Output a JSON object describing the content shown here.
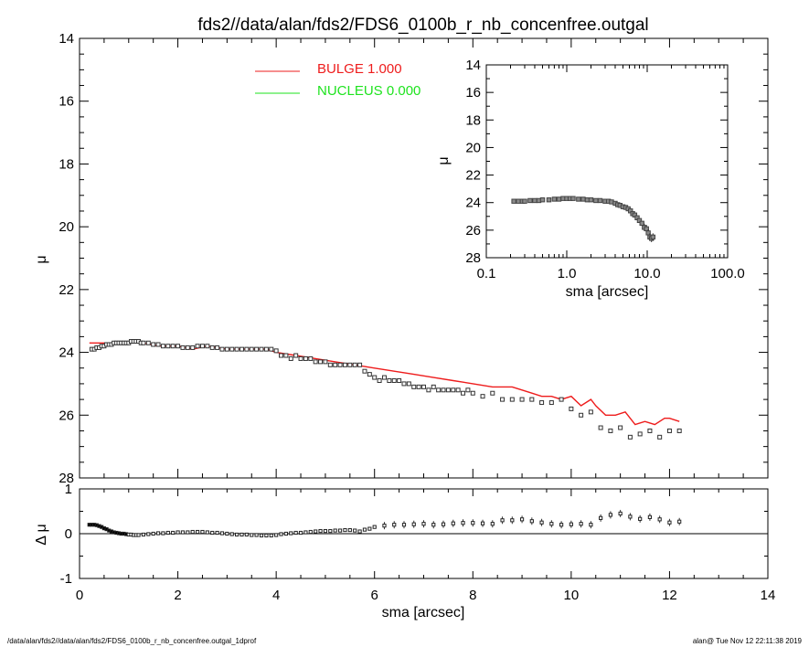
{
  "header": {
    "title": "fds2//data/alan/fds2/FDS6_0100b_r_nb_concenfree.outgal"
  },
  "footer": {
    "left": "/data/alan/fds2//data/alan/fds2/FDS6_0100b_r_nb_concenfree.outgal_1dprof",
    "right": "alan@  Tue Nov 12 22:11:38 2019"
  },
  "legend": [
    {
      "label": "BULGE  1.000",
      "color": "#ee1c1c"
    },
    {
      "label": "NUCLEUS  0.000",
      "color": "#1ee31e"
    }
  ],
  "chart_data": [
    {
      "type": "scatter",
      "panel": "main",
      "xlabel": "sma [arcsec]",
      "ylabel": "μ",
      "xlim": [
        0,
        14
      ],
      "ylim": [
        28,
        14
      ],
      "xticks": [
        "0",
        "2",
        "4",
        "6",
        "8",
        "10",
        "12",
        "14"
      ],
      "yticks": [
        "14",
        "16",
        "18",
        "20",
        "22",
        "24",
        "26",
        "28"
      ],
      "series": [
        {
          "name": "BULGE  1.000",
          "kind": "line",
          "color": "#ee1c1c",
          "x": [
            0.2,
            0.5,
            0.7,
            1.0,
            1.3,
            1.6,
            2.0,
            2.3,
            2.6,
            3.0,
            3.4,
            3.8,
            4.0,
            4.4,
            4.8,
            5.2,
            5.6,
            6.0,
            6.4,
            6.8,
            7.2,
            7.6,
            8.0,
            8.4,
            8.8,
            9.0,
            9.2,
            9.4,
            9.6,
            9.8,
            10.0,
            10.2,
            10.4,
            10.5,
            10.7,
            10.9,
            11.1,
            11.3,
            11.5,
            11.7,
            11.9,
            12.0,
            12.2
          ],
          "y": [
            23.7,
            23.7,
            23.7,
            23.7,
            23.7,
            23.8,
            23.8,
            23.9,
            23.8,
            23.9,
            23.9,
            23.9,
            24.0,
            24.1,
            24.2,
            24.3,
            24.4,
            24.5,
            24.6,
            24.7,
            24.8,
            24.9,
            25.0,
            25.1,
            25.1,
            25.2,
            25.3,
            25.4,
            25.4,
            25.5,
            25.4,
            25.7,
            25.5,
            25.7,
            26.0,
            26.0,
            25.9,
            26.3,
            26.2,
            26.3,
            26.1,
            26.1,
            26.2
          ]
        },
        {
          "name": "data",
          "kind": "points",
          "x": [
            0.25,
            0.3,
            0.35,
            0.4,
            0.45,
            0.5,
            0.55,
            0.6,
            0.65,
            0.7,
            0.75,
            0.8,
            0.85,
            0.9,
            0.95,
            1.0,
            1.05,
            1.1,
            1.15,
            1.2,
            1.25,
            1.3,
            1.4,
            1.5,
            1.6,
            1.7,
            1.8,
            1.9,
            2.0,
            2.1,
            2.2,
            2.3,
            2.4,
            2.5,
            2.6,
            2.7,
            2.8,
            2.9,
            3.0,
            3.1,
            3.2,
            3.3,
            3.4,
            3.5,
            3.6,
            3.7,
            3.8,
            3.9,
            4.0,
            4.1,
            4.2,
            4.3,
            4.4,
            4.5,
            4.6,
            4.7,
            4.8,
            4.9,
            5.0,
            5.1,
            5.2,
            5.3,
            5.4,
            5.5,
            5.6,
            5.7,
            5.8,
            5.9,
            6.0,
            6.1,
            6.2,
            6.3,
            6.4,
            6.5,
            6.6,
            6.7,
            6.8,
            6.9,
            7.0,
            7.1,
            7.2,
            7.3,
            7.4,
            7.5,
            7.6,
            7.7,
            7.8,
            7.9,
            8.0,
            8.2,
            8.4,
            8.6,
            8.8,
            9.0,
            9.2,
            9.4,
            9.6,
            9.8,
            10.0,
            10.2,
            10.4,
            10.6,
            10.8,
            11.0,
            11.2,
            11.4,
            11.6,
            11.8,
            12.0,
            12.2
          ],
          "y": [
            23.9,
            23.9,
            23.85,
            23.85,
            23.8,
            23.8,
            23.75,
            23.75,
            23.75,
            23.7,
            23.7,
            23.7,
            23.7,
            23.7,
            23.7,
            23.7,
            23.65,
            23.65,
            23.65,
            23.65,
            23.7,
            23.7,
            23.7,
            23.75,
            23.75,
            23.8,
            23.8,
            23.8,
            23.8,
            23.85,
            23.85,
            23.85,
            23.8,
            23.8,
            23.8,
            23.85,
            23.85,
            23.9,
            23.9,
            23.9,
            23.9,
            23.9,
            23.9,
            23.9,
            23.9,
            23.9,
            23.9,
            23.9,
            23.95,
            24.1,
            24.1,
            24.2,
            24.1,
            24.2,
            24.2,
            24.2,
            24.3,
            24.3,
            24.3,
            24.4,
            24.4,
            24.4,
            24.4,
            24.4,
            24.4,
            24.4,
            24.6,
            24.7,
            24.8,
            24.9,
            24.8,
            24.9,
            24.9,
            24.9,
            25.0,
            25.0,
            25.1,
            25.1,
            25.1,
            25.2,
            25.1,
            25.2,
            25.2,
            25.2,
            25.2,
            25.2,
            25.3,
            25.2,
            25.3,
            25.4,
            25.3,
            25.5,
            25.5,
            25.5,
            25.5,
            25.6,
            25.6,
            25.5,
            25.8,
            26.0,
            25.9,
            26.4,
            26.5,
            26.4,
            26.7,
            26.6,
            26.5,
            26.7,
            26.5,
            26.5
          ]
        }
      ]
    },
    {
      "type": "scatter",
      "panel": "residual",
      "xlabel": "sma [arcsec]",
      "ylabel": "Δ μ",
      "xlim": [
        0,
        14
      ],
      "ylim": [
        -1,
        1
      ],
      "yticks": [
        "1",
        "0",
        "-1"
      ],
      "x": [
        0.2,
        0.25,
        0.3,
        0.35,
        0.4,
        0.45,
        0.5,
        0.55,
        0.6,
        0.65,
        0.7,
        0.75,
        0.8,
        0.85,
        0.9,
        0.95,
        1.0,
        1.05,
        1.1,
        1.15,
        1.2,
        1.3,
        1.4,
        1.5,
        1.6,
        1.7,
        1.8,
        1.9,
        2.0,
        2.1,
        2.2,
        2.3,
        2.4,
        2.5,
        2.6,
        2.7,
        2.8,
        2.9,
        3.0,
        3.1,
        3.2,
        3.3,
        3.4,
        3.5,
        3.6,
        3.7,
        3.8,
        3.9,
        4.0,
        4.1,
        4.2,
        4.3,
        4.4,
        4.5,
        4.6,
        4.7,
        4.8,
        4.9,
        5.0,
        5.1,
        5.2,
        5.3,
        5.4,
        5.5,
        5.6,
        5.7,
        5.8,
        5.9,
        6.0,
        6.2,
        6.4,
        6.6,
        6.8,
        7.0,
        7.2,
        7.4,
        7.6,
        7.8,
        8.0,
        8.2,
        8.4,
        8.6,
        8.8,
        9.0,
        9.2,
        9.4,
        9.6,
        9.8,
        10.0,
        10.2,
        10.4,
        10.6,
        10.8,
        11.0,
        11.2,
        11.4,
        11.6,
        11.8,
        12.0,
        12.2
      ],
      "y": [
        0.2,
        0.2,
        0.2,
        0.19,
        0.17,
        0.15,
        0.12,
        0.1,
        0.07,
        0.05,
        0.03,
        0.02,
        0.01,
        0.0,
        0.0,
        -0.01,
        -0.02,
        -0.02,
        -0.03,
        -0.03,
        -0.03,
        -0.02,
        -0.01,
        0.0,
        0.01,
        0.01,
        0.02,
        0.02,
        0.03,
        0.03,
        0.03,
        0.04,
        0.04,
        0.04,
        0.03,
        0.02,
        0.02,
        0.01,
        0.0,
        -0.01,
        -0.02,
        -0.02,
        -0.02,
        -0.03,
        -0.03,
        -0.04,
        -0.04,
        -0.04,
        -0.03,
        -0.01,
        0.0,
        0.01,
        0.02,
        0.02,
        0.03,
        0.04,
        0.05,
        0.06,
        0.06,
        0.06,
        0.07,
        0.07,
        0.08,
        0.08,
        0.07,
        0.05,
        0.09,
        0.11,
        0.15,
        0.18,
        0.2,
        0.2,
        0.21,
        0.22,
        0.2,
        0.21,
        0.23,
        0.24,
        0.24,
        0.23,
        0.22,
        0.3,
        0.3,
        0.32,
        0.28,
        0.25,
        0.22,
        0.2,
        0.21,
        0.22,
        0.2,
        0.35,
        0.42,
        0.45,
        0.38,
        0.33,
        0.37,
        0.32,
        0.25,
        0.27
      ]
    },
    {
      "type": "scatter",
      "panel": "inset",
      "xlabel": "sma [arcsec]",
      "ylabel": "μ",
      "xscale": "log",
      "xlim": [
        0.1,
        100
      ],
      "ylim": [
        28,
        14
      ],
      "xticks": [
        "0.1",
        "1.0",
        "10.0",
        "100.0"
      ],
      "yticks": [
        "14",
        "16",
        "18",
        "20",
        "22",
        "24",
        "26",
        "28"
      ],
      "x": [
        0.22,
        0.25,
        0.28,
        0.3,
        0.35,
        0.4,
        0.45,
        0.5,
        0.6,
        0.7,
        0.8,
        0.9,
        1.0,
        1.1,
        1.2,
        1.4,
        1.6,
        1.8,
        2.0,
        2.3,
        2.6,
        3.0,
        3.3,
        3.6,
        4.0,
        4.3,
        4.6,
        5.0,
        5.4,
        5.8,
        6.2,
        6.6,
        7.0,
        7.5,
        8.0,
        8.6,
        9.2,
        9.8,
        10.3,
        10.8,
        11.3,
        11.8
      ],
      "y": [
        23.9,
        23.9,
        23.9,
        23.9,
        23.85,
        23.85,
        23.85,
        23.8,
        23.8,
        23.75,
        23.75,
        23.7,
        23.7,
        23.7,
        23.7,
        23.75,
        23.75,
        23.8,
        23.8,
        23.85,
        23.85,
        23.9,
        23.9,
        23.95,
        24.05,
        24.15,
        24.2,
        24.3,
        24.35,
        24.45,
        24.6,
        24.8,
        24.9,
        25.1,
        25.3,
        25.5,
        25.8,
        25.9,
        26.2,
        26.5,
        26.6,
        26.5
      ]
    }
  ]
}
